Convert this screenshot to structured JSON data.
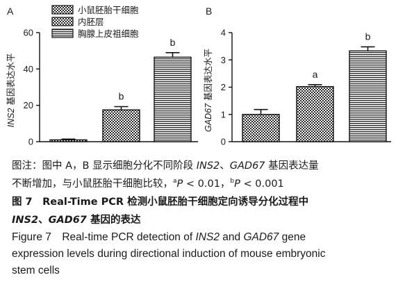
{
  "chart_data": [
    {
      "panel": "A",
      "type": "bar",
      "ylabel": "INS2 基因表达水平",
      "ylim": [
        0,
        60
      ],
      "yticks": [
        0,
        20,
        40,
        60
      ],
      "categories": [
        "小鼠胚胎干细胞",
        "内胚层",
        "胸腺上皮祖细胞"
      ],
      "values": [
        1,
        17.5,
        46.5
      ],
      "errors": [
        0.4,
        1.8,
        2.5
      ],
      "significance": [
        "",
        "b",
        "b"
      ],
      "legend": [
        "小鼠胚胎干细胞",
        "内胚层",
        "胸腺上皮祖细胞"
      ],
      "legend_position": "top-left"
    },
    {
      "panel": "B",
      "type": "bar",
      "ylabel": "GAD67 基因表达水平",
      "ylim": [
        0,
        4
      ],
      "yticks": [
        0,
        1,
        2,
        3,
        4
      ],
      "categories": [
        "小鼠胚胎干细胞",
        "内胚层",
        "胸腺上皮祖细胞"
      ],
      "values": [
        1.0,
        2.02,
        3.33
      ],
      "errors": [
        0.18,
        0.07,
        0.15
      ],
      "significance": [
        "",
        "a",
        "b"
      ]
    }
  ],
  "caption": {
    "note_1_a": "图注：图中 A，B 显示细胞分化不同阶段 ",
    "note_1_g1": "INS2",
    "note_1_b": "、",
    "note_1_g2": "GAD67",
    "note_1_c": " 基因表达量",
    "note_2_a": "不断增加，与小鼠胚胎干细胞比较，",
    "note_2_sa": "a",
    "note_2_p1": "P",
    "note_2_v1": " < 0.01，",
    "note_2_sb": "b",
    "note_2_p2": "P",
    "note_2_v2": " < 0.001",
    "title_zh_1": "图 7　Real-Time PCR 检测小鼠胚胎干细胞定向诱导分化过程中",
    "title_zh_2_g1": "INS2",
    "title_zh_2_b": "、",
    "title_zh_2_g2": "GAD67",
    "title_zh_2_c": " 基因的表达",
    "title_en_1_a": "Figure 7　Real-time PCR detection of ",
    "title_en_1_g1": "INS2",
    "title_en_1_b": " and ",
    "title_en_1_g2": "GAD67",
    "title_en_1_c": " gene",
    "title_en_2": "expression levels during directional induction of mouse embryonic",
    "title_en_3": "stem cells"
  }
}
